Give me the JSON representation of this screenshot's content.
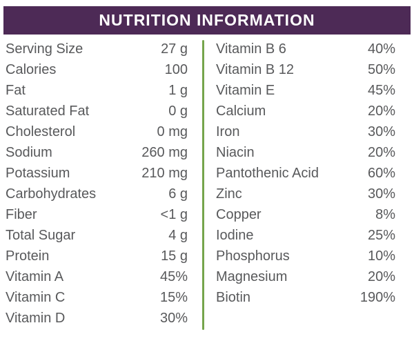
{
  "header": {
    "title": "NUTRITION INFORMATION",
    "bg_color": "#4d2a56",
    "text_color": "#ffffff"
  },
  "colors": {
    "divider_green": "#75a54b",
    "body_text": "#58595b",
    "background": "#ffffff"
  },
  "table": {
    "left_column": {
      "rows": [
        {
          "label": "Serving Size",
          "value": "27 g"
        },
        {
          "label": "Calories",
          "value": "100"
        },
        {
          "label": "Fat",
          "value": "1 g"
        },
        {
          "label": "Saturated Fat",
          "value": "0 g"
        },
        {
          "label": "Cholesterol",
          "value": "0 mg"
        },
        {
          "label": "Sodium",
          "value": "260 mg"
        },
        {
          "label": "Potassium",
          "value": "210 mg"
        },
        {
          "label": "Carbohydrates",
          "value": "6 g"
        },
        {
          "label": "Fiber",
          "value": "<1 g"
        },
        {
          "label": "Total Sugar",
          "value": "4 g"
        },
        {
          "label": "Protein",
          "value": "15 g"
        },
        {
          "label": "Vitamin A",
          "value": "45%"
        },
        {
          "label": "Vitamin C",
          "value": "15%"
        },
        {
          "label": "Vitamin D",
          "value": "30%"
        }
      ]
    },
    "right_column": {
      "rows": [
        {
          "label": "Vitamin B 6",
          "value": "40%"
        },
        {
          "label": "Vitamin B 12",
          "value": "50%"
        },
        {
          "label": "Vitamin E",
          "value": "45%"
        },
        {
          "label": "Calcium",
          "value": "20%"
        },
        {
          "label": "Iron",
          "value": "30%"
        },
        {
          "label": "Niacin",
          "value": "20%"
        },
        {
          "label": "Pantothenic Acid",
          "value": "60%"
        },
        {
          "label": "Zinc",
          "value": "30%"
        },
        {
          "label": "Copper",
          "value": "8%"
        },
        {
          "label": "Iodine",
          "value": "25%"
        },
        {
          "label": "Phosphorus",
          "value": "10%"
        },
        {
          "label": "Magnesium",
          "value": "20%"
        },
        {
          "label": "Biotin",
          "value": "190%"
        }
      ]
    }
  }
}
